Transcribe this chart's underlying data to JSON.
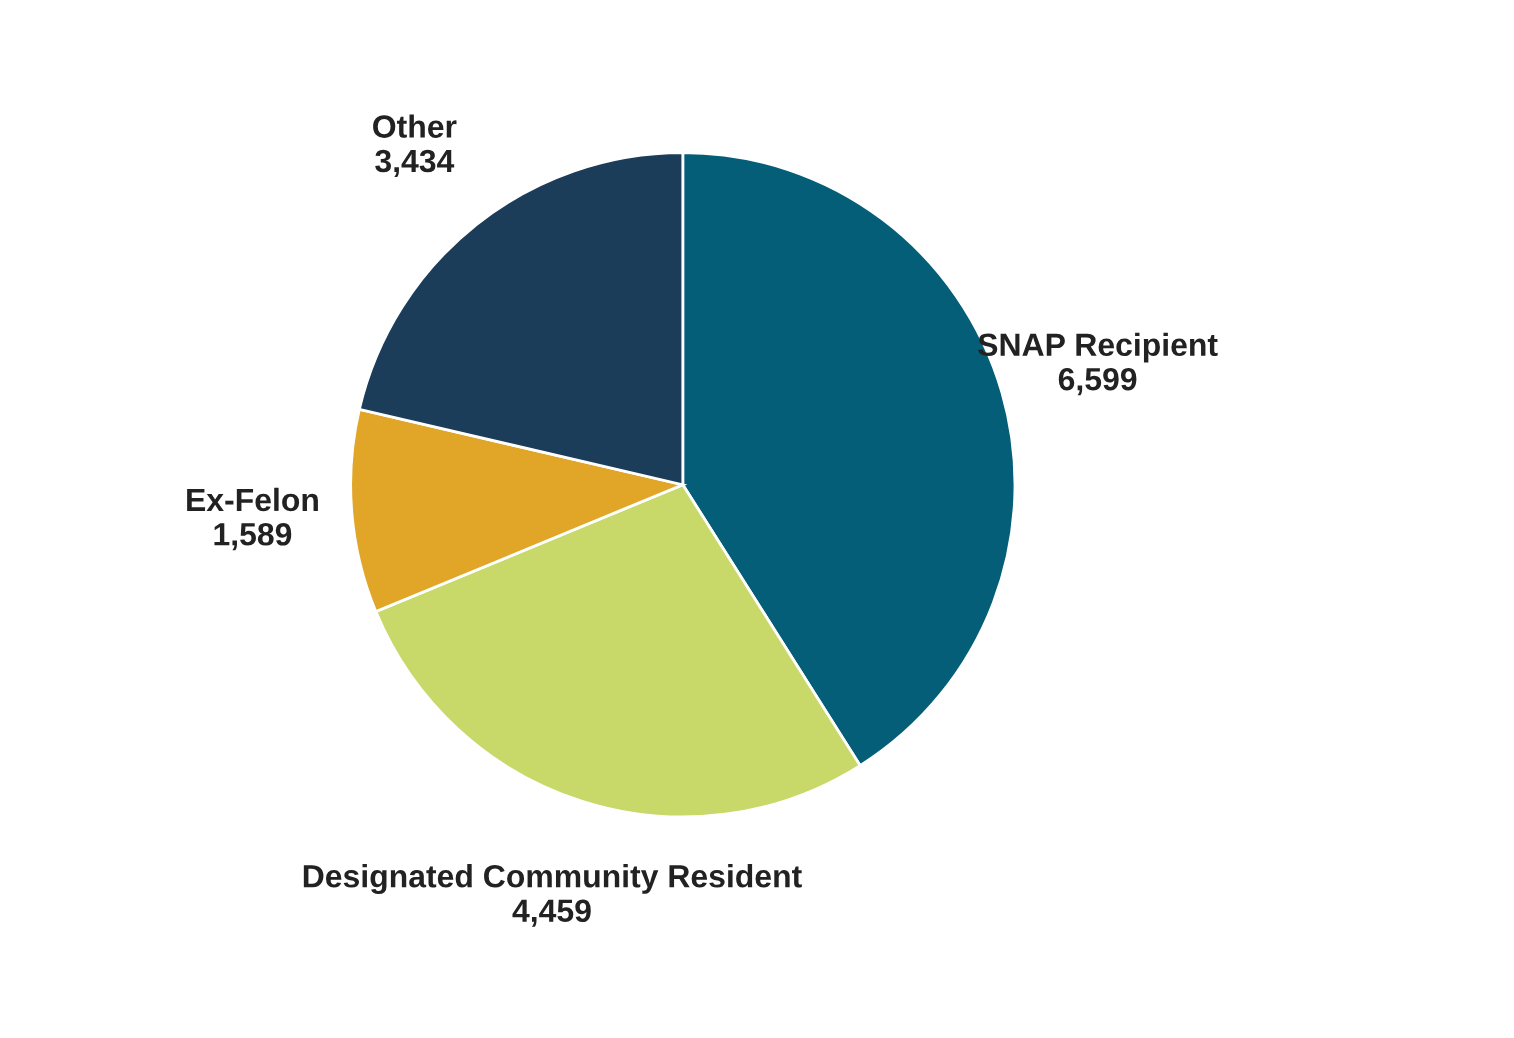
{
  "chart_data": {
    "type": "pie",
    "categories": [
      "SNAP Recipient",
      "Designated Community Resident",
      "Ex-Felon",
      "Other"
    ],
    "values": [
      6599,
      4459,
      1589,
      3434
    ],
    "colors": [
      "#045e78",
      "#c8d96a",
      "#e1a628",
      "#1c3d5a"
    ],
    "value_labels": [
      "6,599",
      "4,459",
      "1,589",
      "3,434"
    ]
  }
}
